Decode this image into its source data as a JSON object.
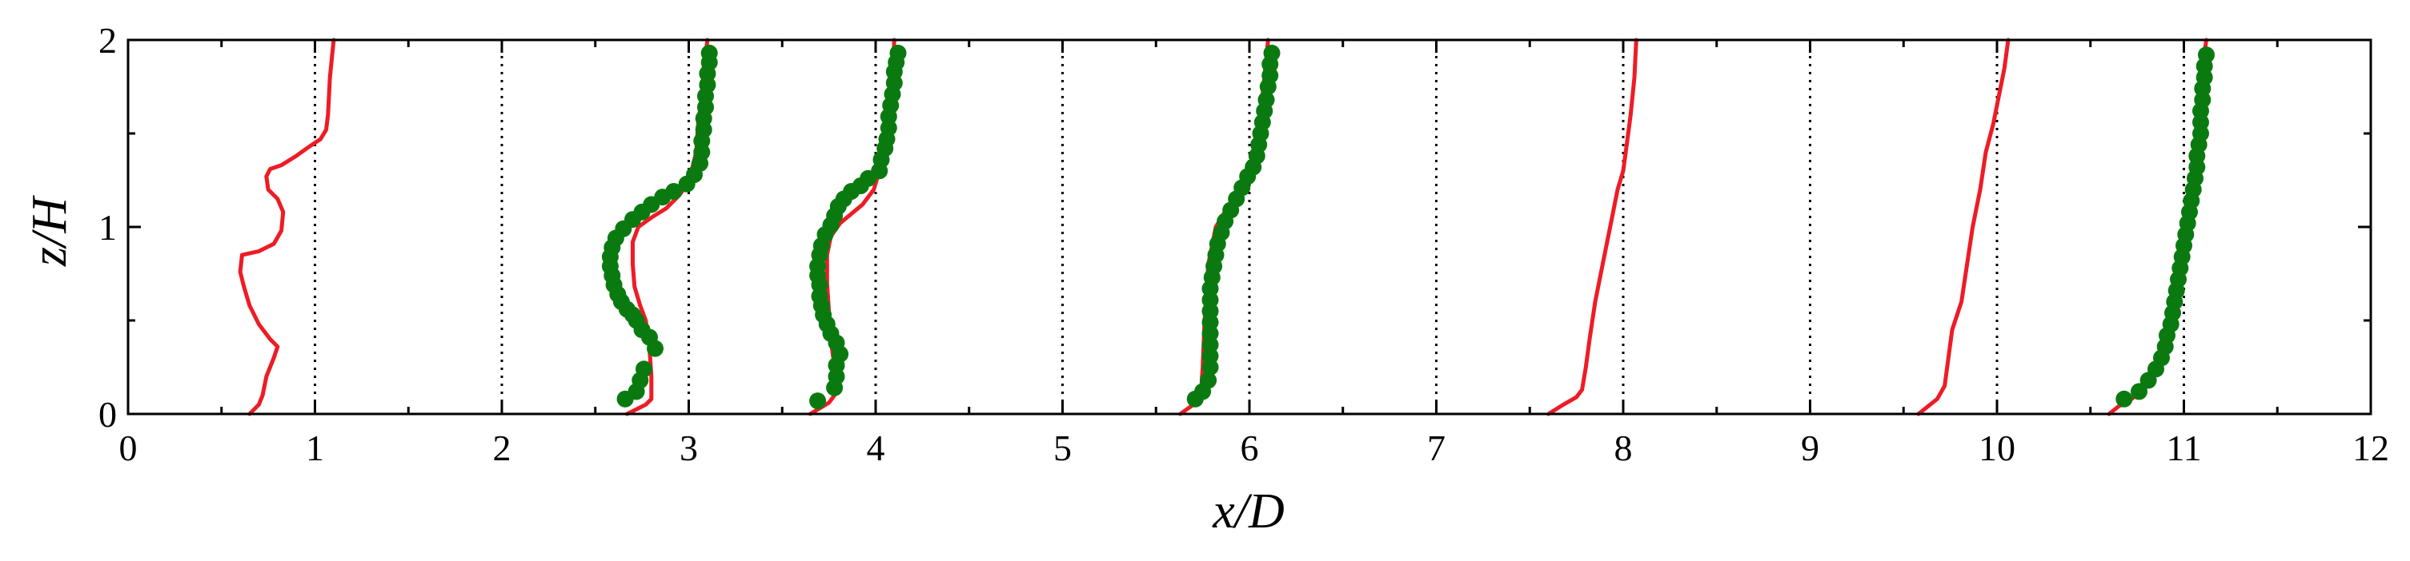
{
  "chart_data": {
    "type": "line",
    "xlabel": "x/D",
    "ylabel": "z/H",
    "xlim": [
      0,
      12
    ],
    "ylim": [
      0,
      2
    ],
    "x_ticks": [
      "0",
      "1",
      "2",
      "3",
      "4",
      "5",
      "6",
      "7",
      "8",
      "9",
      "10",
      "11",
      "12"
    ],
    "y_ticks": [
      "0",
      "1",
      "2"
    ],
    "x_minor_step": 0.5,
    "y_minor_step": 0.5,
    "grid": "dotted vertical reference lines at x = 1 ... 11",
    "reference_lines_x": [
      1,
      2,
      3,
      4,
      5,
      6,
      7,
      8,
      9,
      10,
      11
    ],
    "line_color": "#ee1c25",
    "marker_color": "#0a7a10",
    "series": [
      {
        "kind": "line",
        "points": [
          [
            0.65,
            0
          ],
          [
            0.7,
            0.05
          ],
          [
            0.72,
            0.1
          ],
          [
            0.74,
            0.2
          ],
          [
            0.78,
            0.3
          ],
          [
            0.8,
            0.36
          ],
          [
            0.76,
            0.4
          ],
          [
            0.7,
            0.48
          ],
          [
            0.65,
            0.58
          ],
          [
            0.62,
            0.68
          ],
          [
            0.6,
            0.76
          ],
          [
            0.61,
            0.85
          ],
          [
            0.7,
            0.87
          ],
          [
            0.78,
            0.91
          ],
          [
            0.82,
            0.98
          ],
          [
            0.83,
            1.08
          ],
          [
            0.8,
            1.15
          ],
          [
            0.75,
            1.2
          ],
          [
            0.74,
            1.27
          ],
          [
            0.76,
            1.31
          ],
          [
            0.82,
            1.33
          ],
          [
            0.9,
            1.38
          ],
          [
            0.97,
            1.43
          ],
          [
            1.03,
            1.47
          ],
          [
            1.06,
            1.52
          ],
          [
            1.07,
            1.6
          ],
          [
            1.08,
            1.8
          ],
          [
            1.1,
            2.0
          ]
        ]
      },
      {
        "kind": "line",
        "points": [
          [
            2.67,
            0
          ],
          [
            2.73,
            0.03
          ],
          [
            2.77,
            0.05
          ],
          [
            2.8,
            0.08
          ],
          [
            2.8,
            0.2
          ],
          [
            2.79,
            0.35
          ],
          [
            2.77,
            0.5
          ],
          [
            2.74,
            0.58
          ],
          [
            2.71,
            0.68
          ],
          [
            2.7,
            0.8
          ],
          [
            2.7,
            0.92
          ],
          [
            2.73,
            1.0
          ],
          [
            2.8,
            1.05
          ],
          [
            2.88,
            1.1
          ],
          [
            2.95,
            1.17
          ],
          [
            3.0,
            1.24
          ],
          [
            3.02,
            1.32
          ],
          [
            3.04,
            1.4
          ],
          [
            3.05,
            1.55
          ],
          [
            3.07,
            1.7
          ],
          [
            3.08,
            1.85
          ],
          [
            3.1,
            2.0
          ]
        ]
      },
      {
        "kind": "markers",
        "points": [
          [
            2.66,
            0.08
          ],
          [
            2.72,
            0.12
          ],
          [
            2.74,
            0.18
          ],
          [
            2.76,
            0.24
          ],
          [
            2.82,
            0.35
          ],
          [
            2.79,
            0.41
          ],
          [
            2.75,
            0.45
          ],
          [
            2.72,
            0.5
          ],
          [
            2.7,
            0.53
          ],
          [
            2.67,
            0.56
          ],
          [
            2.64,
            0.6
          ],
          [
            2.62,
            0.64
          ],
          [
            2.6,
            0.69
          ],
          [
            2.59,
            0.74
          ],
          [
            2.58,
            0.79
          ],
          [
            2.58,
            0.84
          ],
          [
            2.59,
            0.89
          ],
          [
            2.61,
            0.94
          ],
          [
            2.65,
            0.99
          ],
          [
            2.7,
            1.04
          ],
          [
            2.75,
            1.08
          ],
          [
            2.8,
            1.12
          ],
          [
            2.86,
            1.16
          ],
          [
            2.92,
            1.19
          ],
          [
            2.99,
            1.23
          ],
          [
            3.03,
            1.28
          ],
          [
            3.06,
            1.34
          ],
          [
            3.07,
            1.4
          ],
          [
            3.07,
            1.46
          ],
          [
            3.08,
            1.52
          ],
          [
            3.08,
            1.58
          ],
          [
            3.09,
            1.64
          ],
          [
            3.09,
            1.7
          ],
          [
            3.1,
            1.76
          ],
          [
            3.1,
            1.82
          ],
          [
            3.11,
            1.88
          ],
          [
            3.11,
            1.93
          ]
        ]
      },
      {
        "kind": "line",
        "points": [
          [
            3.65,
            0
          ],
          [
            3.7,
            0.03
          ],
          [
            3.75,
            0.06
          ],
          [
            3.78,
            0.1
          ],
          [
            3.78,
            0.25
          ],
          [
            3.76,
            0.4
          ],
          [
            3.75,
            0.55
          ],
          [
            3.74,
            0.7
          ],
          [
            3.74,
            0.85
          ],
          [
            3.76,
            0.95
          ],
          [
            3.81,
            1.02
          ],
          [
            3.87,
            1.07
          ],
          [
            3.93,
            1.12
          ],
          [
            3.99,
            1.2
          ],
          [
            4.02,
            1.3
          ],
          [
            4.03,
            1.4
          ],
          [
            4.05,
            1.5
          ],
          [
            4.07,
            1.6
          ],
          [
            4.08,
            1.7
          ],
          [
            4.09,
            1.8
          ],
          [
            4.1,
            2.0
          ]
        ]
      },
      {
        "kind": "markers",
        "points": [
          [
            3.69,
            0.07
          ],
          [
            3.78,
            0.14
          ],
          [
            3.79,
            0.2
          ],
          [
            3.79,
            0.26
          ],
          [
            3.81,
            0.32
          ],
          [
            3.79,
            0.38
          ],
          [
            3.76,
            0.43
          ],
          [
            3.74,
            0.48
          ],
          [
            3.72,
            0.53
          ],
          [
            3.71,
            0.58
          ],
          [
            3.7,
            0.63
          ],
          [
            3.7,
            0.69
          ],
          [
            3.69,
            0.74
          ],
          [
            3.69,
            0.79
          ],
          [
            3.7,
            0.85
          ],
          [
            3.71,
            0.9
          ],
          [
            3.73,
            0.96
          ],
          [
            3.76,
            1.01
          ],
          [
            3.78,
            1.06
          ],
          [
            3.8,
            1.11
          ],
          [
            3.83,
            1.15
          ],
          [
            3.87,
            1.19
          ],
          [
            3.92,
            1.22
          ],
          [
            3.96,
            1.26
          ],
          [
            4.02,
            1.3
          ],
          [
            4.03,
            1.36
          ],
          [
            4.05,
            1.42
          ],
          [
            4.06,
            1.47
          ],
          [
            4.07,
            1.53
          ],
          [
            4.07,
            1.59
          ],
          [
            4.08,
            1.65
          ],
          [
            4.09,
            1.71
          ],
          [
            4.1,
            1.77
          ],
          [
            4.1,
            1.83
          ],
          [
            4.11,
            1.88
          ],
          [
            4.12,
            1.93
          ]
        ]
      },
      {
        "kind": "line",
        "points": [
          [
            5.63,
            0
          ],
          [
            5.7,
            0.05
          ],
          [
            5.74,
            0.1
          ],
          [
            5.75,
            0.25
          ],
          [
            5.76,
            0.5
          ],
          [
            5.78,
            0.8
          ],
          [
            5.82,
            1.0
          ],
          [
            5.88,
            1.1
          ],
          [
            5.96,
            1.22
          ],
          [
            6.0,
            1.3
          ],
          [
            6.03,
            1.45
          ],
          [
            6.06,
            1.6
          ],
          [
            6.08,
            1.8
          ],
          [
            6.1,
            2.0
          ]
        ]
      },
      {
        "kind": "markers",
        "points": [
          [
            5.71,
            0.08
          ],
          [
            5.75,
            0.12
          ],
          [
            5.78,
            0.18
          ],
          [
            5.79,
            0.25
          ],
          [
            5.79,
            0.31
          ],
          [
            5.79,
            0.37
          ],
          [
            5.79,
            0.43
          ],
          [
            5.79,
            0.49
          ],
          [
            5.79,
            0.55
          ],
          [
            5.79,
            0.61
          ],
          [
            5.79,
            0.67
          ],
          [
            5.8,
            0.73
          ],
          [
            5.81,
            0.79
          ],
          [
            5.82,
            0.85
          ],
          [
            5.83,
            0.91
          ],
          [
            5.85,
            0.97
          ],
          [
            5.87,
            1.03
          ],
          [
            5.9,
            1.09
          ],
          [
            5.93,
            1.15
          ],
          [
            5.96,
            1.21
          ],
          [
            5.99,
            1.27
          ],
          [
            6.02,
            1.32
          ],
          [
            6.04,
            1.38
          ],
          [
            6.05,
            1.44
          ],
          [
            6.06,
            1.5
          ],
          [
            6.07,
            1.56
          ],
          [
            6.08,
            1.62
          ],
          [
            6.09,
            1.68
          ],
          [
            6.1,
            1.75
          ],
          [
            6.11,
            1.81
          ],
          [
            6.11,
            1.87
          ],
          [
            6.12,
            1.93
          ]
        ]
      },
      {
        "kind": "line",
        "points": [
          [
            7.6,
            0
          ],
          [
            7.68,
            0.05
          ],
          [
            7.75,
            0.09
          ],
          [
            7.78,
            0.13
          ],
          [
            7.8,
            0.25
          ],
          [
            7.82,
            0.4
          ],
          [
            7.85,
            0.6
          ],
          [
            7.89,
            0.8
          ],
          [
            7.93,
            1.0
          ],
          [
            7.97,
            1.2
          ],
          [
            8.0,
            1.3
          ],
          [
            8.02,
            1.45
          ],
          [
            8.04,
            1.6
          ],
          [
            8.06,
            1.8
          ],
          [
            8.07,
            2.0
          ]
        ]
      },
      {
        "kind": "line",
        "points": [
          [
            9.58,
            0
          ],
          [
            9.63,
            0.04
          ],
          [
            9.68,
            0.08
          ],
          [
            9.72,
            0.15
          ],
          [
            9.74,
            0.3
          ],
          [
            9.76,
            0.45
          ],
          [
            9.81,
            0.6
          ],
          [
            9.84,
            0.8
          ],
          [
            9.87,
            1.0
          ],
          [
            9.91,
            1.2
          ],
          [
            9.94,
            1.4
          ],
          [
            9.98,
            1.55
          ],
          [
            10.01,
            1.7
          ],
          [
            10.04,
            1.85
          ],
          [
            10.06,
            2.0
          ]
        ]
      },
      {
        "kind": "line",
        "points": [
          [
            10.6,
            0
          ],
          [
            10.65,
            0.04
          ],
          [
            10.72,
            0.08
          ],
          [
            10.78,
            0.13
          ],
          [
            10.84,
            0.2
          ],
          [
            10.88,
            0.3
          ],
          [
            10.91,
            0.45
          ],
          [
            10.94,
            0.6
          ],
          [
            10.97,
            0.8
          ],
          [
            10.99,
            0.95
          ],
          [
            11.02,
            1.1
          ],
          [
            11.05,
            1.3
          ],
          [
            11.07,
            1.5
          ],
          [
            11.09,
            1.7
          ],
          [
            11.1,
            1.85
          ],
          [
            11.12,
            2.0
          ]
        ]
      },
      {
        "kind": "markers",
        "points": [
          [
            10.68,
            0.08
          ],
          [
            10.76,
            0.12
          ],
          [
            10.81,
            0.18
          ],
          [
            10.85,
            0.24
          ],
          [
            10.88,
            0.3
          ],
          [
            10.9,
            0.36
          ],
          [
            10.91,
            0.42
          ],
          [
            10.93,
            0.48
          ],
          [
            10.94,
            0.54
          ],
          [
            10.95,
            0.6
          ],
          [
            10.96,
            0.66
          ],
          [
            10.97,
            0.72
          ],
          [
            10.98,
            0.78
          ],
          [
            10.99,
            0.84
          ],
          [
            11.0,
            0.9
          ],
          [
            11.01,
            0.96
          ],
          [
            11.02,
            1.02
          ],
          [
            11.03,
            1.08
          ],
          [
            11.04,
            1.14
          ],
          [
            11.05,
            1.2
          ],
          [
            11.06,
            1.26
          ],
          [
            11.07,
            1.32
          ],
          [
            11.07,
            1.38
          ],
          [
            11.08,
            1.44
          ],
          [
            11.09,
            1.5
          ],
          [
            11.09,
            1.56
          ],
          [
            11.09,
            1.62
          ],
          [
            11.1,
            1.68
          ],
          [
            11.1,
            1.74
          ],
          [
            11.11,
            1.8
          ],
          [
            11.11,
            1.86
          ],
          [
            11.12,
            1.92
          ]
        ]
      }
    ]
  }
}
